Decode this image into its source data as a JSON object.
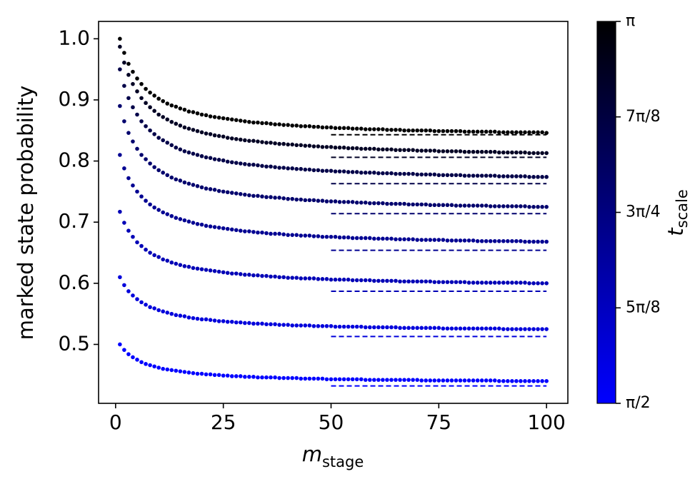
{
  "chart_data": {
    "type": "scatter",
    "xlabel": "m",
    "xlabel_subscript": "stage",
    "ylabel": "marked state probability",
    "xlim": [
      -3.95,
      104.95
    ],
    "xticks": [
      0,
      25,
      50,
      75,
      100
    ],
    "ylim": [
      0.4036,
      1.0284
    ],
    "yticks": [
      0.5,
      0.6,
      0.7,
      0.8,
      0.9,
      {
        "value": 1,
        "label": "1.0"
      }
    ],
    "asymptote_x": [
      50,
      100
    ],
    "x": [
      1,
      2,
      3,
      4,
      5,
      6,
      7,
      8,
      9,
      10,
      11,
      12,
      13,
      14,
      15,
      16,
      17,
      18,
      19,
      20,
      21,
      22,
      23,
      24,
      25,
      26,
      27,
      28,
      29,
      30,
      31,
      32,
      33,
      34,
      35,
      36,
      37,
      38,
      39,
      40,
      41,
      42,
      43,
      44,
      45,
      46,
      47,
      48,
      49,
      50,
      51,
      52,
      53,
      54,
      55,
      56,
      57,
      58,
      59,
      60,
      61,
      62,
      63,
      64,
      65,
      66,
      67,
      68,
      69,
      70,
      71,
      72,
      73,
      74,
      75,
      76,
      77,
      78,
      79,
      80,
      81,
      82,
      83,
      84,
      85,
      86,
      87,
      88,
      89,
      90,
      91,
      92,
      93,
      94,
      95,
      96,
      97,
      98,
      99,
      100
    ],
    "series": [
      {
        "color": "#000000",
        "asymptote": 0.843,
        "values": [
          1,
          0.977,
          0.959,
          0.946,
          0.935,
          0.926,
          0.918,
          0.912,
          0.907,
          0.902,
          0.898,
          0.894,
          0.891,
          0.889,
          0.886,
          0.884,
          0.881,
          0.88,
          0.878,
          0.876,
          0.875,
          0.873,
          0.872,
          0.871,
          0.87,
          0.869,
          0.868,
          0.867,
          0.866,
          0.865,
          0.864,
          0.863,
          0.863,
          0.862,
          0.862,
          0.861,
          0.86,
          0.86,
          0.859,
          0.859,
          0.858,
          0.858,
          0.857,
          0.857,
          0.857,
          0.856,
          0.856,
          0.855,
          0.855,
          0.855,
          0.854,
          0.854,
          0.854,
          0.854,
          0.853,
          0.853,
          0.853,
          0.852,
          0.852,
          0.852,
          0.852,
          0.852,
          0.851,
          0.851,
          0.851,
          0.851,
          0.85,
          0.85,
          0.85,
          0.85,
          0.85,
          0.85,
          0.85,
          0.849,
          0.849,
          0.849,
          0.849,
          0.849,
          0.849,
          0.849,
          0.848,
          0.848,
          0.848,
          0.848,
          0.848,
          0.848,
          0.848,
          0.848,
          0.847,
          0.847,
          0.847,
          0.847,
          0.847,
          0.847,
          0.847,
          0.847,
          0.847,
          0.847,
          0.847,
          0.846
        ]
      },
      {
        "color": "#000024",
        "asymptote": 0.806,
        "values": [
          0.987,
          0.961,
          0.941,
          0.926,
          0.914,
          0.903,
          0.895,
          0.888,
          0.882,
          0.876,
          0.872,
          0.868,
          0.864,
          0.861,
          0.858,
          0.855,
          0.853,
          0.851,
          0.849,
          0.847,
          0.845,
          0.844,
          0.842,
          0.841,
          0.84,
          0.838,
          0.837,
          0.836,
          0.835,
          0.834,
          0.833,
          0.833,
          0.832,
          0.831,
          0.83,
          0.83,
          0.829,
          0.828,
          0.828,
          0.827,
          0.827,
          0.826,
          0.826,
          0.825,
          0.825,
          0.824,
          0.824,
          0.823,
          0.823,
          0.823,
          0.822,
          0.822,
          0.822,
          0.821,
          0.821,
          0.821,
          0.82,
          0.82,
          0.82,
          0.82,
          0.819,
          0.819,
          0.819,
          0.819,
          0.818,
          0.818,
          0.818,
          0.818,
          0.818,
          0.817,
          0.817,
          0.817,
          0.817,
          0.817,
          0.816,
          0.816,
          0.816,
          0.816,
          0.816,
          0.816,
          0.815,
          0.815,
          0.815,
          0.815,
          0.815,
          0.815,
          0.815,
          0.815,
          0.814,
          0.814,
          0.814,
          0.814,
          0.814,
          0.814,
          0.814,
          0.813,
          0.813,
          0.813,
          0.813,
          0.813
        ]
      },
      {
        "color": "#000049",
        "asymptote": 0.763,
        "values": [
          0.95,
          0.923,
          0.903,
          0.888,
          0.876,
          0.865,
          0.857,
          0.85,
          0.844,
          0.838,
          0.834,
          0.83,
          0.826,
          0.822,
          0.819,
          0.816,
          0.814,
          0.812,
          0.81,
          0.808,
          0.806,
          0.805,
          0.803,
          0.802,
          0.801,
          0.799,
          0.798,
          0.797,
          0.796,
          0.795,
          0.794,
          0.794,
          0.793,
          0.792,
          0.791,
          0.791,
          0.79,
          0.789,
          0.789,
          0.788,
          0.788,
          0.787,
          0.787,
          0.786,
          0.786,
          0.785,
          0.785,
          0.784,
          0.784,
          0.784,
          0.783,
          0.783,
          0.783,
          0.782,
          0.782,
          0.782,
          0.781,
          0.781,
          0.781,
          0.781,
          0.78,
          0.78,
          0.78,
          0.78,
          0.779,
          0.779,
          0.779,
          0.779,
          0.779,
          0.778,
          0.778,
          0.778,
          0.778,
          0.778,
          0.777,
          0.777,
          0.777,
          0.777,
          0.777,
          0.777,
          0.776,
          0.776,
          0.776,
          0.776,
          0.776,
          0.776,
          0.776,
          0.776,
          0.775,
          0.775,
          0.775,
          0.775,
          0.775,
          0.775,
          0.775,
          0.774,
          0.774,
          0.774,
          0.774,
          0.774
        ]
      },
      {
        "color": "#00006d",
        "asymptote": 0.714,
        "values": [
          0.89,
          0.865,
          0.846,
          0.832,
          0.82,
          0.81,
          0.803,
          0.796,
          0.79,
          0.785,
          0.781,
          0.777,
          0.773,
          0.77,
          0.768,
          0.765,
          0.763,
          0.761,
          0.759,
          0.757,
          0.755,
          0.754,
          0.753,
          0.751,
          0.75,
          0.749,
          0.748,
          0.747,
          0.746,
          0.745,
          0.744,
          0.743,
          0.743,
          0.742,
          0.741,
          0.741,
          0.74,
          0.74,
          0.739,
          0.738,
          0.738,
          0.737,
          0.737,
          0.736,
          0.736,
          0.736,
          0.735,
          0.735,
          0.734,
          0.734,
          0.734,
          0.733,
          0.733,
          0.733,
          0.733,
          0.732,
          0.732,
          0.732,
          0.731,
          0.731,
          0.731,
          0.731,
          0.73,
          0.73,
          0.73,
          0.73,
          0.73,
          0.729,
          0.729,
          0.729,
          0.729,
          0.729,
          0.728,
          0.728,
          0.728,
          0.728,
          0.728,
          0.728,
          0.727,
          0.727,
          0.727,
          0.727,
          0.727,
          0.727,
          0.727,
          0.727,
          0.726,
          0.726,
          0.726,
          0.726,
          0.726,
          0.726,
          0.726,
          0.726,
          0.726,
          0.725,
          0.725,
          0.725,
          0.725,
          0.725
        ]
      },
      {
        "color": "#000092",
        "asymptote": 0.654,
        "values": [
          0.81,
          0.788,
          0.772,
          0.76,
          0.75,
          0.742,
          0.735,
          0.729,
          0.724,
          0.72,
          0.716,
          0.713,
          0.71,
          0.707,
          0.705,
          0.703,
          0.701,
          0.699,
          0.697,
          0.696,
          0.694,
          0.693,
          0.692,
          0.691,
          0.69,
          0.689,
          0.688,
          0.687,
          0.686,
          0.685,
          0.685,
          0.684,
          0.683,
          0.683,
          0.682,
          0.681,
          0.681,
          0.681,
          0.68,
          0.679,
          0.679,
          0.679,
          0.678,
          0.678,
          0.678,
          0.677,
          0.677,
          0.676,
          0.676,
          0.676,
          0.676,
          0.675,
          0.675,
          0.675,
          0.674,
          0.674,
          0.674,
          0.674,
          0.674,
          0.673,
          0.673,
          0.673,
          0.673,
          0.673,
          0.672,
          0.672,
          0.672,
          0.672,
          0.672,
          0.671,
          0.671,
          0.671,
          0.671,
          0.671,
          0.671,
          0.671,
          0.67,
          0.67,
          0.67,
          0.67,
          0.67,
          0.67,
          0.67,
          0.669,
          0.669,
          0.669,
          0.669,
          0.669,
          0.669,
          0.669,
          0.669,
          0.669,
          0.669,
          0.669,
          0.668,
          0.668,
          0.668,
          0.668,
          0.668,
          0.668
        ]
      },
      {
        "color": "#0000b6",
        "asymptote": 0.587,
        "values": [
          0.717,
          0.699,
          0.686,
          0.676,
          0.667,
          0.661,
          0.655,
          0.65,
          0.646,
          0.643,
          0.639,
          0.637,
          0.634,
          0.632,
          0.63,
          0.628,
          0.627,
          0.625,
          0.624,
          0.623,
          0.622,
          0.621,
          0.62,
          0.619,
          0.618,
          0.617,
          0.616,
          0.616,
          0.615,
          0.614,
          0.614,
          0.613,
          0.613,
          0.612,
          0.612,
          0.611,
          0.611,
          0.61,
          0.61,
          0.609,
          0.609,
          0.609,
          0.608,
          0.608,
          0.608,
          0.608,
          0.607,
          0.607,
          0.607,
          0.606,
          0.606,
          0.606,
          0.606,
          0.606,
          0.605,
          0.605,
          0.605,
          0.605,
          0.605,
          0.604,
          0.604,
          0.604,
          0.604,
          0.604,
          0.604,
          0.603,
          0.603,
          0.603,
          0.603,
          0.603,
          0.603,
          0.603,
          0.603,
          0.602,
          0.602,
          0.602,
          0.602,
          0.602,
          0.602,
          0.602,
          0.602,
          0.601,
          0.601,
          0.601,
          0.601,
          0.601,
          0.601,
          0.601,
          0.601,
          0.601,
          0.601,
          0.601,
          0.601,
          0.601,
          0.601,
          0.6,
          0.6,
          0.6,
          0.6,
          0.6
        ]
      },
      {
        "color": "#0000db",
        "asymptote": 0.513,
        "values": [
          0.61,
          0.597,
          0.587,
          0.58,
          0.574,
          0.569,
          0.565,
          0.561,
          0.559,
          0.556,
          0.554,
          0.552,
          0.55,
          0.548,
          0.547,
          0.546,
          0.544,
          0.543,
          0.542,
          0.541,
          0.541,
          0.54,
          0.539,
          0.538,
          0.538,
          0.537,
          0.537,
          0.536,
          0.536,
          0.535,
          0.535,
          0.534,
          0.534,
          0.534,
          0.533,
          0.533,
          0.533,
          0.532,
          0.532,
          0.532,
          0.531,
          0.531,
          0.531,
          0.531,
          0.531,
          0.53,
          0.53,
          0.53,
          0.53,
          0.53,
          0.529,
          0.529,
          0.529,
          0.529,
          0.529,
          0.529,
          0.529,
          0.528,
          0.528,
          0.528,
          0.528,
          0.528,
          0.528,
          0.528,
          0.528,
          0.527,
          0.527,
          0.527,
          0.527,
          0.527,
          0.527,
          0.527,
          0.527,
          0.527,
          0.527,
          0.526,
          0.526,
          0.526,
          0.526,
          0.526,
          0.526,
          0.526,
          0.526,
          0.526,
          0.526,
          0.526,
          0.526,
          0.526,
          0.526,
          0.525,
          0.525,
          0.525,
          0.525,
          0.525,
          0.525,
          0.525,
          0.525,
          0.525,
          0.525,
          0.525
        ]
      },
      {
        "color": "#0000ff",
        "asymptote": 0.432,
        "values": [
          0.5,
          0.491,
          0.484,
          0.479,
          0.475,
          0.471,
          0.468,
          0.466,
          0.464,
          0.462,
          0.46,
          0.459,
          0.458,
          0.457,
          0.456,
          0.455,
          0.454,
          0.453,
          0.452,
          0.452,
          0.451,
          0.451,
          0.45,
          0.45,
          0.449,
          0.449,
          0.448,
          0.448,
          0.448,
          0.447,
          0.447,
          0.447,
          0.446,
          0.446,
          0.446,
          0.446,
          0.446,
          0.445,
          0.445,
          0.445,
          0.445,
          0.445,
          0.444,
          0.444,
          0.444,
          0.444,
          0.444,
          0.444,
          0.443,
          0.443,
          0.443,
          0.443,
          0.443,
          0.443,
          0.443,
          0.443,
          0.443,
          0.442,
          0.442,
          0.442,
          0.442,
          0.442,
          0.442,
          0.442,
          0.442,
          0.442,
          0.442,
          0.442,
          0.442,
          0.442,
          0.441,
          0.441,
          0.441,
          0.441,
          0.441,
          0.441,
          0.441,
          0.441,
          0.441,
          0.441,
          0.441,
          0.441,
          0.441,
          0.441,
          0.441,
          0.441,
          0.441,
          0.441,
          0.44,
          0.44,
          0.44,
          0.44,
          0.44,
          0.44,
          0.44,
          0.44,
          0.44,
          0.44,
          0.44,
          0.44
        ]
      }
    ],
    "colorbar": {
      "label": "t",
      "label_subscript": "scale",
      "colors": [
        "#0000ff",
        "#000000"
      ],
      "lim": [
        1.5708,
        3.1416
      ],
      "ticks": [
        {
          "value": 1.5708,
          "label": "π/2"
        },
        {
          "value": 1.9635,
          "label": "5π/8"
        },
        {
          "value": 2.3562,
          "label": "3π/4"
        },
        {
          "value": 2.7489,
          "label": "7π/8"
        },
        {
          "value": 3.1416,
          "label": "π"
        }
      ]
    }
  }
}
